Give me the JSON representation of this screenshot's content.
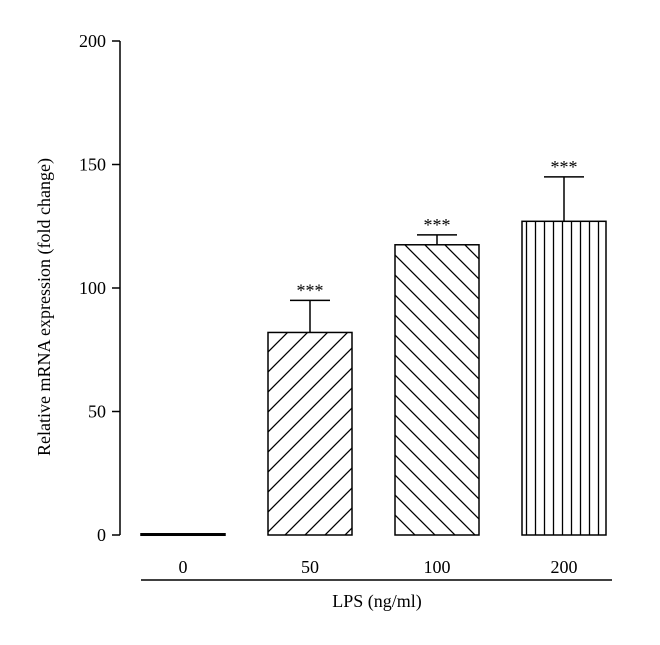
{
  "chart_data": {
    "type": "bar",
    "title": "",
    "xlabel": "LPS (ng/ml)",
    "ylabel": "Relative mRNA expression (fold change)",
    "categories": [
      "0",
      "50",
      "100",
      "200"
    ],
    "values": [
      0.5,
      82,
      117.5,
      127
    ],
    "errors": [
      0.3,
      13,
      4,
      18
    ],
    "significance": [
      "",
      "***",
      "***",
      "***"
    ],
    "patterns": [
      "none",
      "diagonal-forward",
      "diagonal-backward",
      "vertical"
    ],
    "ylim": [
      0,
      200
    ],
    "yticks": [
      "0",
      "50",
      "100",
      "150",
      "200"
    ],
    "grid": false,
    "legend": "none",
    "bar_color": "#ffffff",
    "line_color": "#000000"
  }
}
